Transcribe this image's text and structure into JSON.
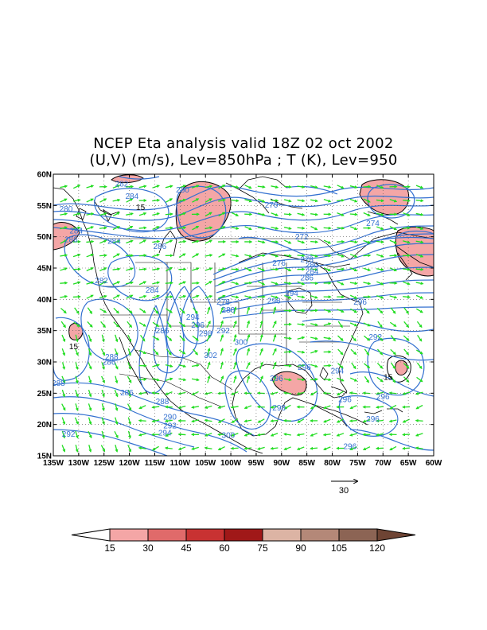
{
  "title_line1": "NCEP Eta analysis valid 18Z 02 oct 2002",
  "title_line2": "(U,V) (m/s), Lev=850hPa ; T (K), Lev=950",
  "lat_labels": [
    "60N",
    "55N",
    "50N",
    "45N",
    "40N",
    "35N",
    "30N",
    "25N",
    "20N",
    "15N"
  ],
  "lon_labels": [
    "135W",
    "130W",
    "125W",
    "120W",
    "115W",
    "110W",
    "105W",
    "100W",
    "95W",
    "90W",
    "85W",
    "80W",
    "75W",
    "70W",
    "65W",
    "60W"
  ],
  "wind_reference_label": "30",
  "wind_reference_value": 30,
  "colorbar": {
    "labels": [
      "15",
      "30",
      "45",
      "60",
      "75",
      "90",
      "105",
      "120"
    ],
    "colors": [
      "#ffffff",
      "#f4a6a6",
      "#e06a6a",
      "#c83232",
      "#a01818",
      "#dcb4a4",
      "#b48878",
      "#8c6454",
      "#6e4434"
    ]
  },
  "colors": {
    "contour": "#3370d0",
    "wind": "#22dd22",
    "coast": "#000000",
    "grid": "#000000"
  },
  "contour_labels": [
    {
      "t": "282",
      "lon": -121.5,
      "lat": 58.5
    },
    {
      "t": "280",
      "lon": -109.5,
      "lat": 57.5
    },
    {
      "t": "284",
      "lon": -119.5,
      "lat": 56.5
    },
    {
      "t": "15",
      "lon": -117.8,
      "lat": 54.7
    },
    {
      "t": "280",
      "lon": -132.5,
      "lat": 54.5
    },
    {
      "t": "284",
      "lon": -130.5,
      "lat": 51.0
    },
    {
      "t": "286",
      "lon": -131.5,
      "lat": 49.6
    },
    {
      "t": "284",
      "lon": -123.0,
      "lat": 49.3
    },
    {
      "t": "286",
      "lon": -114.0,
      "lat": 48.5
    },
    {
      "t": "270",
      "lon": -92.0,
      "lat": 55.1
    },
    {
      "t": "272",
      "lon": -86.0,
      "lat": 50.0
    },
    {
      "t": "274",
      "lon": -72.0,
      "lat": 52.2
    },
    {
      "t": "276",
      "lon": -90.5,
      "lat": 45.8
    },
    {
      "t": "278",
      "lon": -85.0,
      "lat": 46.4
    },
    {
      "t": "280",
      "lon": -84.0,
      "lat": 45.5
    },
    {
      "t": "284",
      "lon": -84.0,
      "lat": 44.5
    },
    {
      "t": "286",
      "lon": -85.0,
      "lat": 43.5
    },
    {
      "t": "282",
      "lon": -125.5,
      "lat": 43.0
    },
    {
      "t": "284",
      "lon": -115.5,
      "lat": 41.5
    },
    {
      "t": "294",
      "lon": -88.0,
      "lat": 41.0
    },
    {
      "t": "296",
      "lon": -91.5,
      "lat": 39.8
    },
    {
      "t": "296",
      "lon": -74.5,
      "lat": 39.6
    },
    {
      "t": "278",
      "lon": -101.5,
      "lat": 39.6
    },
    {
      "t": "280",
      "lon": -100.5,
      "lat": 38.3
    },
    {
      "t": "294",
      "lon": -107.5,
      "lat": 37.2
    },
    {
      "t": "296",
      "lon": -106.5,
      "lat": 35.9
    },
    {
      "t": "292",
      "lon": -101.5,
      "lat": 35.0
    },
    {
      "t": "298",
      "lon": -105.0,
      "lat": 34.6
    },
    {
      "t": "286",
      "lon": -113.5,
      "lat": 35.0
    },
    {
      "t": "300",
      "lon": -98.0,
      "lat": 33.2
    },
    {
      "t": "292",
      "lon": -71.5,
      "lat": 34.0
    },
    {
      "t": "15",
      "lon": -131.0,
      "lat": 32.5
    },
    {
      "t": "302",
      "lon": -104.0,
      "lat": 31.1
    },
    {
      "t": "288",
      "lon": -123.5,
      "lat": 30.8
    },
    {
      "t": "286",
      "lon": -124.0,
      "lat": 30.0
    },
    {
      "t": "296",
      "lon": -85.5,
      "lat": 29.2
    },
    {
      "t": "294",
      "lon": -79.0,
      "lat": 28.6
    },
    {
      "t": "296",
      "lon": -91.0,
      "lat": 27.4
    },
    {
      "t": "15",
      "lon": -69.0,
      "lat": 27.6
    },
    {
      "t": "288",
      "lon": -134.0,
      "lat": 26.6
    },
    {
      "t": "286",
      "lon": -120.5,
      "lat": 25.1
    },
    {
      "t": "296",
      "lon": -70.0,
      "lat": 24.5
    },
    {
      "t": "296",
      "lon": -77.5,
      "lat": 24.0
    },
    {
      "t": "288",
      "lon": -113.5,
      "lat": 23.7
    },
    {
      "t": "298",
      "lon": -90.5,
      "lat": 22.7
    },
    {
      "t": "290",
      "lon": -112.0,
      "lat": 21.2
    },
    {
      "t": "296",
      "lon": -72.0,
      "lat": 20.9
    },
    {
      "t": "292",
      "lon": -112.0,
      "lat": 19.8
    },
    {
      "t": "294",
      "lon": -113.0,
      "lat": 18.7
    },
    {
      "t": "292",
      "lon": -132.0,
      "lat": 18.5
    },
    {
      "t": "300",
      "lon": -100.5,
      "lat": 18.3
    },
    {
      "t": "296",
      "lon": -76.5,
      "lat": 16.5
    }
  ]
}
